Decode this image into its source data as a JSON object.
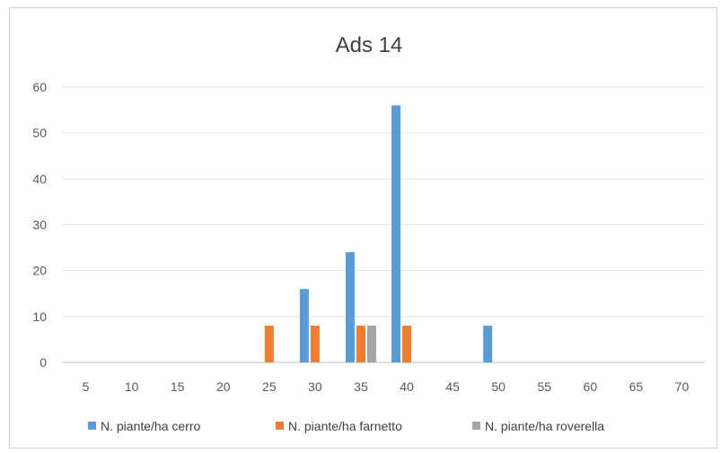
{
  "chart_data": {
    "type": "bar",
    "title": "Ads 14",
    "xlabel": "",
    "ylabel": "",
    "categories": [
      "5",
      "10",
      "15",
      "20",
      "25",
      "30",
      "35",
      "40",
      "45",
      "50",
      "55",
      "60",
      "65",
      "70"
    ],
    "ylim": [
      0,
      60
    ],
    "yticks": [
      0,
      10,
      20,
      30,
      40,
      50,
      60
    ],
    "grid": true,
    "legend_position": "bottom",
    "series": [
      {
        "name": "N. piante/ha  cerro",
        "color": "#5b9bd5",
        "values": [
          0,
          0,
          0,
          0,
          0,
          16,
          24,
          56,
          0,
          8,
          0,
          0,
          0,
          0
        ]
      },
      {
        "name": "N. piante/ha farnetto",
        "color": "#ed7d31",
        "values": [
          0,
          0,
          0,
          0,
          8,
          8,
          8,
          8,
          0,
          0,
          0,
          0,
          0,
          0
        ]
      },
      {
        "name": "N. piante/ha roverella",
        "color": "#a5a5a5",
        "values": [
          0,
          0,
          0,
          0,
          0,
          0,
          8,
          0,
          0,
          0,
          0,
          0,
          0,
          0
        ]
      }
    ]
  }
}
